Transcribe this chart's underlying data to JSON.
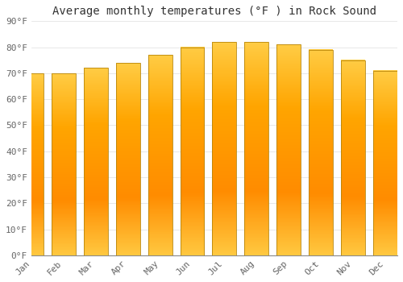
{
  "title": "Average monthly temperatures (°F ) in Rock Sound",
  "months": [
    "Jan",
    "Feb",
    "Mar",
    "Apr",
    "May",
    "Jun",
    "Jul",
    "Aug",
    "Sep",
    "Oct",
    "Nov",
    "Dec"
  ],
  "values": [
    70,
    70,
    72,
    74,
    77,
    80,
    82,
    82,
    81,
    79,
    75,
    71
  ],
  "bar_color_top": "#FFB300",
  "bar_color_bottom": "#FFA000",
  "bar_edge_color": "#B8860B",
  "background_color": "#ffffff",
  "plot_bg_color": "#ffffff",
  "ylim": [
    0,
    90
  ],
  "yticks": [
    0,
    10,
    20,
    30,
    40,
    50,
    60,
    70,
    80,
    90
  ],
  "title_fontsize": 10,
  "tick_fontsize": 8,
  "grid_color": "#dddddd",
  "bar_width": 0.75
}
